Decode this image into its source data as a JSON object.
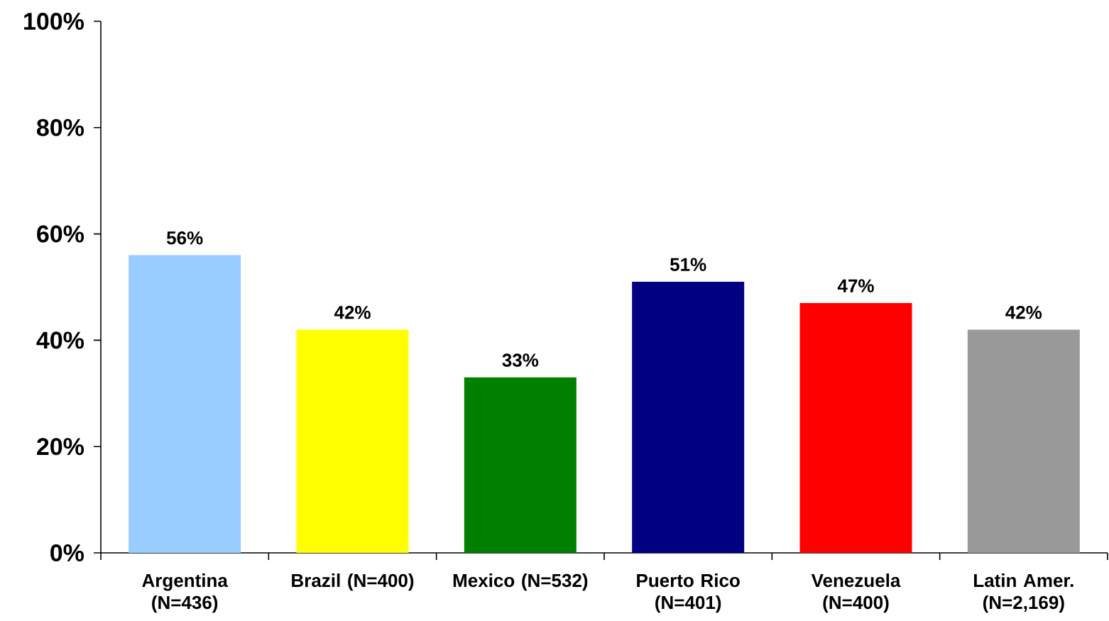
{
  "chart_data": {
    "type": "bar",
    "categories": [
      "Argentina (N=436)",
      "Brazil (N=400)",
      "Mexico (N=532)",
      "Puerto Rico (N=401)",
      "Venezuela (N=400)",
      "Latin Amer. (N=2,169)"
    ],
    "values": [
      56,
      42,
      33,
      51,
      47,
      42
    ],
    "colors": [
      "#99ccff",
      "#ffff00",
      "#008000",
      "#000080",
      "#ff0000",
      "#999999"
    ],
    "value_labels": [
      "56%",
      "42%",
      "33%",
      "51%",
      "47%",
      "42%"
    ],
    "ylim": [
      0,
      100
    ],
    "yticks": [
      {
        "value": 0,
        "label": "0%"
      },
      {
        "value": 20,
        "label": "20%"
      },
      {
        "value": 40,
        "label": "40%"
      },
      {
        "value": 60,
        "label": "60%"
      },
      {
        "value": 80,
        "label": "80%"
      },
      {
        "value": 100,
        "label": "100%"
      }
    ],
    "grid": false
  }
}
